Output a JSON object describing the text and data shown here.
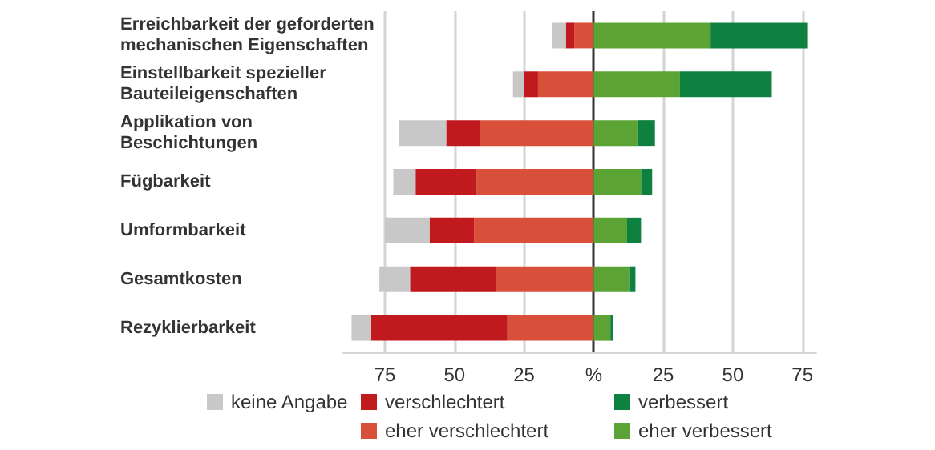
{
  "chart_data": {
    "type": "bar",
    "orientation": "horizontal",
    "stacked": true,
    "categories": [
      "Erreichbarkeit der geforderten\nmechanischen Eigenschaften",
      "Einstellbarkeit spezieller\nBauteileigenschaften",
      "Applikation von\nBeschichtungen",
      "Fügbarkeit",
      "Umformbarkeit",
      "Gesamtkosten",
      "Rezyklierbarkeit"
    ],
    "series": [
      {
        "name": "eher verschlechtert",
        "color": "#d9503a",
        "values": [
          -7,
          -20,
          -41,
          -42,
          -43,
          -35,
          -31
        ]
      },
      {
        "name": "verschlechtert",
        "color": "#c0191e",
        "values": [
          -3,
          -5,
          -12,
          -22,
          -16,
          -31,
          -49
        ]
      },
      {
        "name": "keine Angabe",
        "color": "#c8c8c8",
        "values": [
          -5,
          -4,
          -17,
          -8,
          -16,
          -11,
          -7
        ]
      },
      {
        "name": "eher verbessert",
        "color": "#5aa334",
        "values": [
          42,
          31,
          16,
          17,
          12,
          13,
          6
        ]
      },
      {
        "name": "verbessert",
        "color": "#0e8040",
        "values": [
          35,
          33,
          6,
          4,
          5,
          2,
          1
        ]
      }
    ],
    "xlim": [
      -90,
      80
    ],
    "xticks": [
      {
        "value": -75,
        "label": "75"
      },
      {
        "value": -50,
        "label": "50"
      },
      {
        "value": -25,
        "label": "25"
      },
      {
        "value": 0,
        "label": "%"
      },
      25,
      50,
      75
    ],
    "grid": "x",
    "legend": "bottom"
  }
}
